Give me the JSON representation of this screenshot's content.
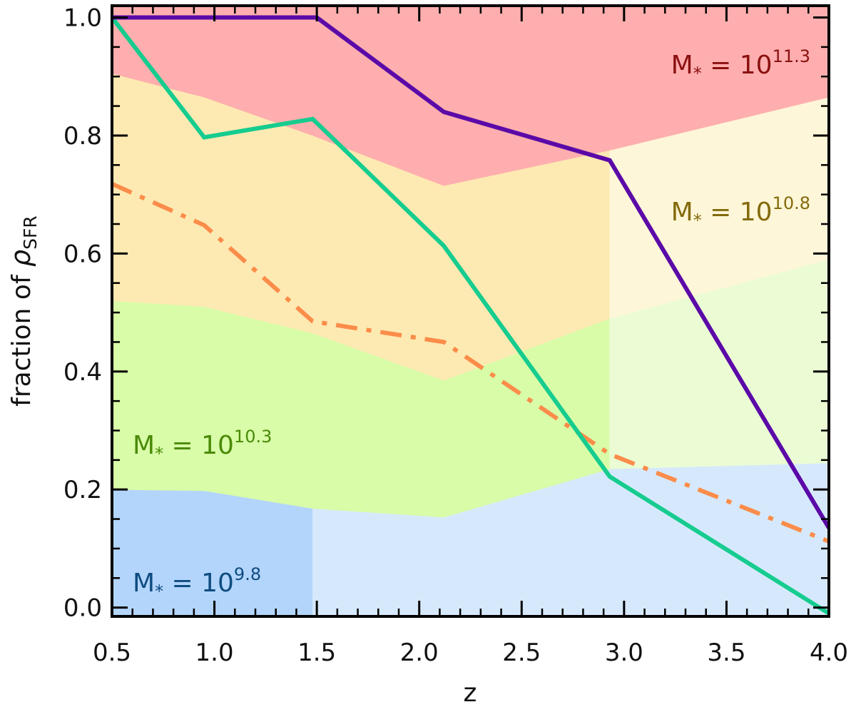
{
  "chart_data": {
    "type": "area",
    "title": "",
    "xlabel": "z",
    "ylabel": {
      "main": "fraction of ",
      "symbol": "ρ",
      "subscript": "SFR"
    },
    "xlim": [
      0.5,
      4.0
    ],
    "ylim": [
      -0.015,
      1.02
    ],
    "x_ticks": [
      0.5,
      1.0,
      1.5,
      2.0,
      2.5,
      3.0,
      3.5,
      4.0
    ],
    "x_tick_labels": [
      "0.5",
      "1.0",
      "1.5",
      "2.0",
      "2.5",
      "3.0",
      "3.5",
      "4.0"
    ],
    "y_ticks": [
      0.0,
      0.2,
      0.4,
      0.6,
      0.8,
      1.0
    ],
    "y_tick_labels": [
      "0.0",
      "0.2",
      "0.4",
      "0.6",
      "0.8",
      "1.0"
    ],
    "grid": false,
    "boundaries": {
      "mass_9_8_upper": {
        "x": [
          0.5,
          0.95,
          1.48,
          2.12,
          2.93,
          4.0
        ],
        "y": [
          0.2,
          0.198,
          0.168,
          0.153,
          0.235,
          0.245
        ]
      },
      "mass_10_3_upper": {
        "x": [
          0.5,
          0.95,
          1.48,
          2.12,
          2.93,
          4.0
        ],
        "y": [
          0.52,
          0.51,
          0.465,
          0.385,
          0.49,
          0.59
        ]
      },
      "mass_10_8_upper": {
        "x": [
          0.5,
          0.95,
          1.48,
          2.12,
          2.93,
          4.0
        ],
        "y": [
          0.905,
          0.865,
          0.8,
          0.715,
          0.775,
          0.865
        ]
      }
    },
    "bands": [
      {
        "name": "M* = 10^9.8",
        "label_main": "M",
        "label_sub": "*",
        "label_eq": " = 10",
        "label_exp": "9.8",
        "color": "#0f4c81",
        "fill_bright": "#b3d5fb",
        "fill_faded": "#d6e9fc",
        "lower": null,
        "upper": "mass_9_8_upper"
      },
      {
        "name": "M* = 10^10.3",
        "label_main": "M",
        "label_sub": "*",
        "label_eq": " = 10",
        "label_exp": "10.3",
        "color": "#4a8a08",
        "fill_bright": "#d8fca8",
        "fill_faded": "#ebfcd4",
        "lower": "mass_9_8_upper",
        "upper": "mass_10_3_upper"
      },
      {
        "name": "M* = 10^10.8",
        "label_main": "M",
        "label_sub": "*",
        "label_eq": " = 10",
        "label_exp": "10.8",
        "color": "#836a0c",
        "fill_bright": "#fdeab2",
        "fill_faded": "#fef6d8",
        "lower": "mass_10_3_upper",
        "upper": "mass_10_8_upper"
      },
      {
        "name": "M* = 10^11.3",
        "label_main": "M",
        "label_sub": "*",
        "label_eq": " = 10",
        "label_exp": "11.3",
        "color": "#8b1010",
        "fill_bright": "#feaeae",
        "fill_faded": "#feaeae",
        "lower": "mass_10_8_upper",
        "upper": null
      }
    ],
    "faded_regions": {
      "mass_9_8": {
        "x_min": 1.48,
        "x_max": 4.0
      },
      "mass_10_3": {
        "x_min": 2.93,
        "x_max": 4.0
      },
      "mass_10_8": {
        "x_min": 2.93,
        "x_max": 4.0
      }
    },
    "series": [
      {
        "name": "purple line",
        "color": "#5b0aa8",
        "style": "solid",
        "x": [
          0.5,
          1.5,
          2.12,
          2.93,
          4.0
        ],
        "y": [
          1.0,
          1.0,
          0.84,
          0.758,
          0.135
        ]
      },
      {
        "name": "green line",
        "color": "#16cc8f",
        "style": "solid",
        "x": [
          0.5,
          0.95,
          1.48,
          2.12,
          2.93,
          4.0
        ],
        "y": [
          1.0,
          0.797,
          0.828,
          0.613,
          0.222,
          -0.01
        ]
      },
      {
        "name": "orange dash-dot line",
        "color": "#fb8c4a",
        "style": "dashdot",
        "x": [
          0.5,
          0.95,
          1.48,
          2.12,
          2.93,
          4.0
        ],
        "y": [
          0.718,
          0.648,
          0.485,
          0.45,
          0.26,
          0.112
        ]
      }
    ]
  }
}
